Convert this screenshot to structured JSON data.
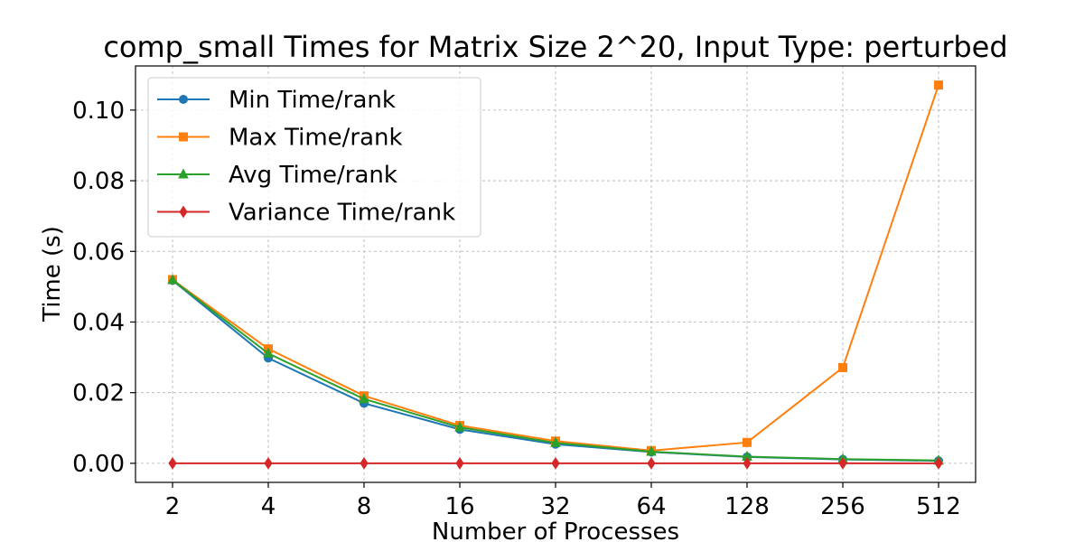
{
  "chart_data": {
    "type": "line",
    "title": "comp_small Times for Matrix Size 2^20, Input Type: perturbed",
    "xlabel": "Number of Processes",
    "ylabel": "Time (s)",
    "categories": [
      "2",
      "4",
      "8",
      "16",
      "32",
      "64",
      "128",
      "256",
      "512"
    ],
    "yticks": [
      "0.00",
      "0.02",
      "0.04",
      "0.06",
      "0.08",
      "0.10"
    ],
    "ylim": [
      -0.0054,
      0.1125
    ],
    "grid": true,
    "legend_position": "top-left",
    "series": [
      {
        "name": "Min Time/rank",
        "color": "#1f77b4",
        "marker": "circle",
        "values": [
          0.0518,
          0.0298,
          0.017,
          0.0096,
          0.0054,
          0.0032,
          0.0018,
          0.0011,
          0.0007
        ]
      },
      {
        "name": "Max Time/rank",
        "color": "#ff7f0e",
        "marker": "square",
        "values": [
          0.052,
          0.0324,
          0.0191,
          0.0107,
          0.0063,
          0.0036,
          0.0059,
          0.0271,
          0.1071
        ]
      },
      {
        "name": "Avg Time/rank",
        "color": "#2ca02c",
        "marker": "triangle",
        "values": [
          0.0519,
          0.0311,
          0.0182,
          0.0102,
          0.0058,
          0.0033,
          0.0019,
          0.0012,
          0.0008
        ]
      },
      {
        "name": "Variance Time/rank",
        "color": "#d62728",
        "marker": "diamond",
        "values": [
          0.0,
          0.0,
          0.0,
          0.0,
          0.0,
          0.0,
          0.0,
          0.0,
          0.0
        ]
      }
    ]
  }
}
